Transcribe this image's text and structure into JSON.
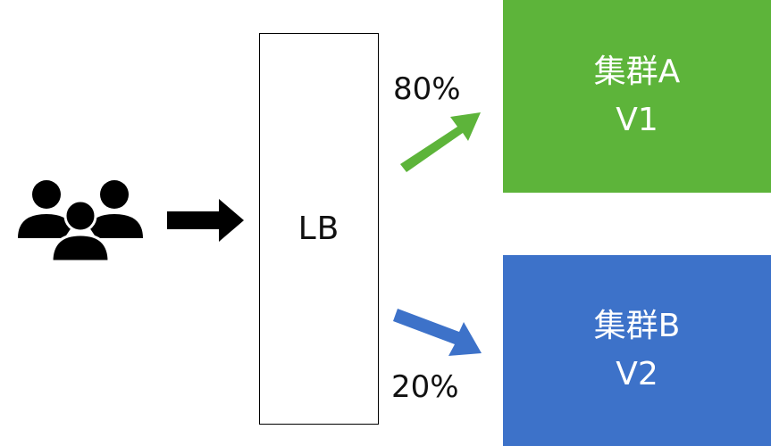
{
  "lb": {
    "label": "LB"
  },
  "routes": [
    {
      "percent": "80%"
    },
    {
      "percent": "20%"
    }
  ],
  "clusters": [
    {
      "name": "集群A",
      "version": "V1"
    },
    {
      "name": "集群B",
      "version": "V2"
    }
  ],
  "colors": {
    "cluster_a": "#5db43a",
    "cluster_b": "#3d72c9",
    "arrow_a": "#5db43a",
    "arrow_b": "#3d72c9",
    "ink": "#000000"
  },
  "icons": {
    "users": "users-group-icon",
    "arrow_to_lb": "arrow-right-icon",
    "arrow_a": "arrow-up-right-icon",
    "arrow_b": "arrow-down-right-icon"
  }
}
